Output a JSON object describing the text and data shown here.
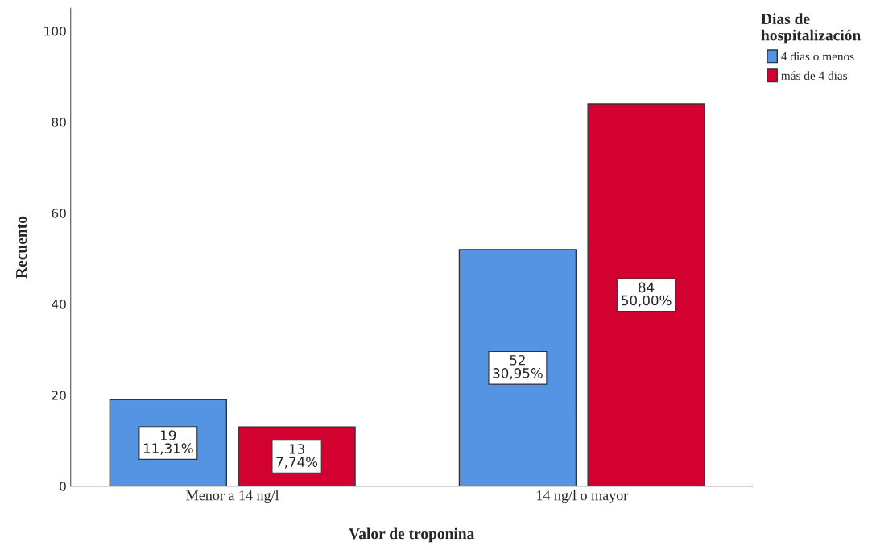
{
  "chart_data": {
    "type": "bar",
    "xlabel": "Valor de troponina",
    "ylabel": "Recuento",
    "legend_title": "Dias de\nhospitalización",
    "categories": [
      "Menor a 14 ng/l",
      "14 ng/l o mayor"
    ],
    "series": [
      {
        "name": "4 dias o menos",
        "color": "#5593e3",
        "values": [
          19,
          52
        ],
        "value_labels": [
          "19\n11,31%",
          "52\n30,95%"
        ]
      },
      {
        "name": "más de 4 dias",
        "color": "#d3012f",
        "values": [
          13,
          84
        ],
        "value_labels": [
          "13\n7,74%",
          "84\n50,00%"
        ]
      }
    ],
    "ylim": [
      0,
      105
    ],
    "yticks": [
      0,
      20,
      40,
      60,
      80,
      100
    ],
    "grid": false,
    "legend": "top right"
  }
}
